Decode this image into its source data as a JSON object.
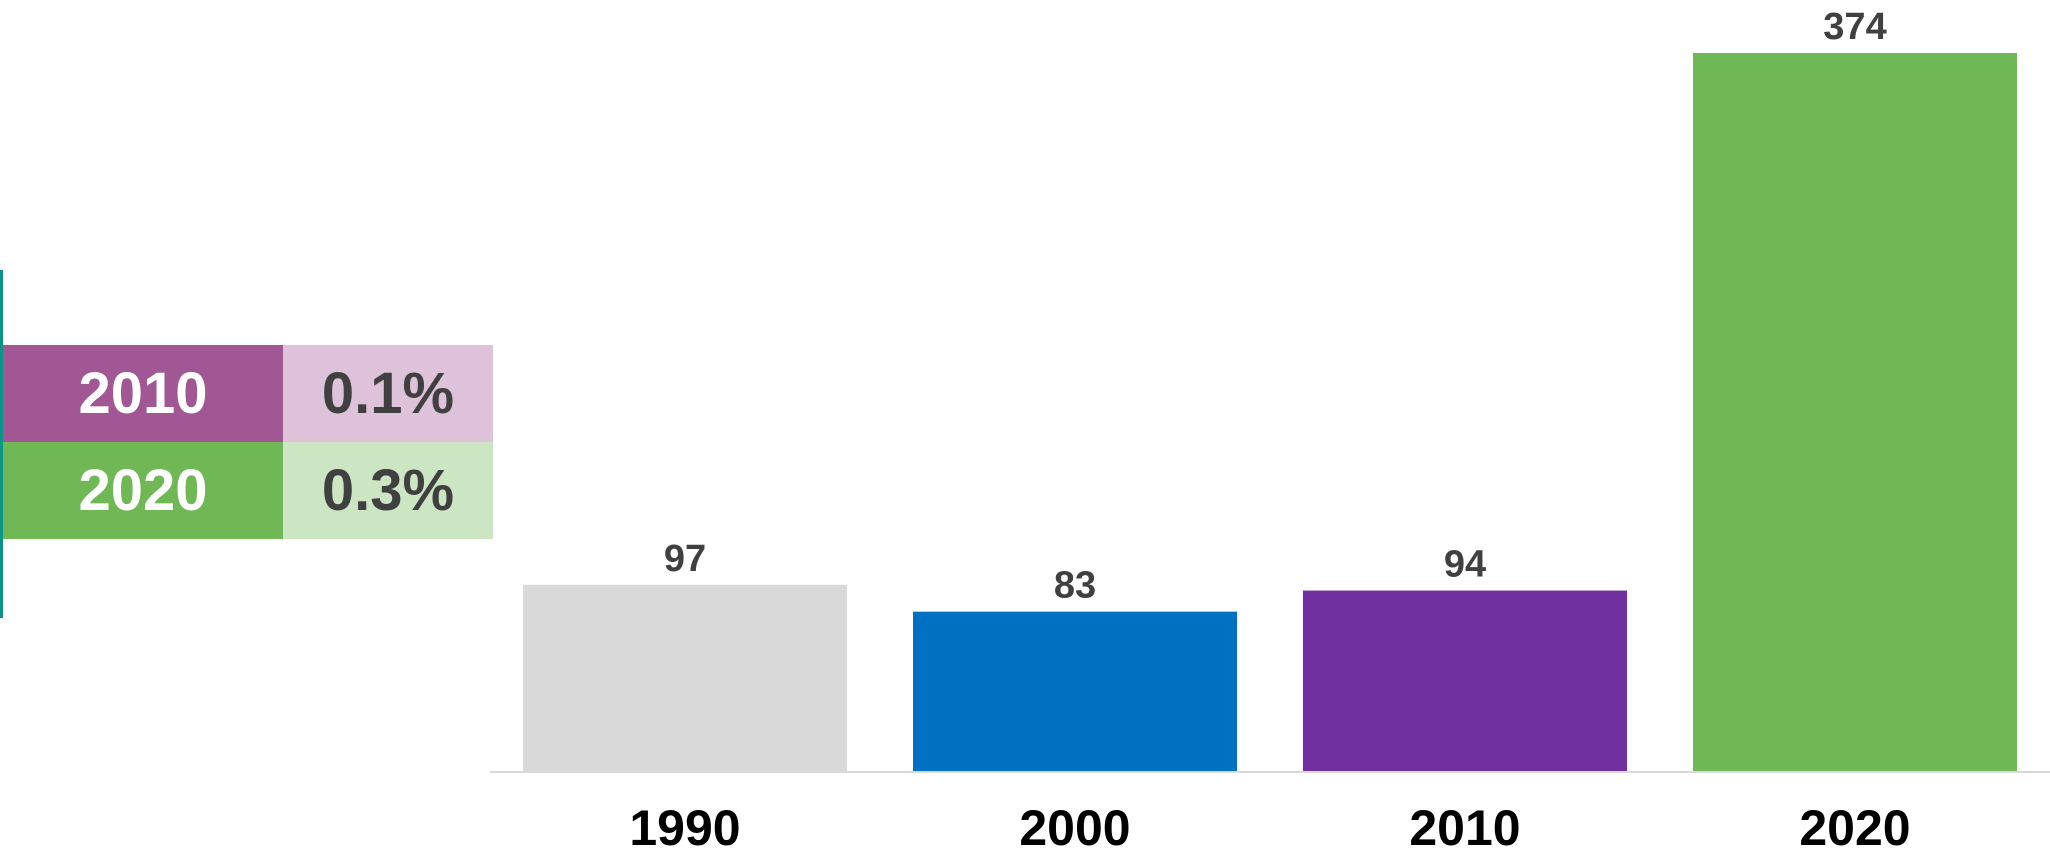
{
  "legend": {
    "rows": [
      {
        "year": "2010",
        "percent": "0.1%",
        "year_color": "#a05793",
        "percent_color": "#dec2da"
      },
      {
        "year": "2020",
        "percent": "0.3%",
        "year_color": "#70b855",
        "percent_color": "#cce6c4"
      }
    ]
  },
  "chart_data": {
    "type": "bar",
    "categories": [
      "1990",
      "2000",
      "2010",
      "2020"
    ],
    "values": [
      97,
      83,
      94,
      374
    ],
    "colors": [
      "#d9d9d9",
      "#0070c0",
      "#7030a0",
      "#70b855"
    ],
    "title": "",
    "xlabel": "",
    "ylabel": "",
    "ylim": [
      0,
      374
    ],
    "grid": false,
    "data_labels": true
  }
}
